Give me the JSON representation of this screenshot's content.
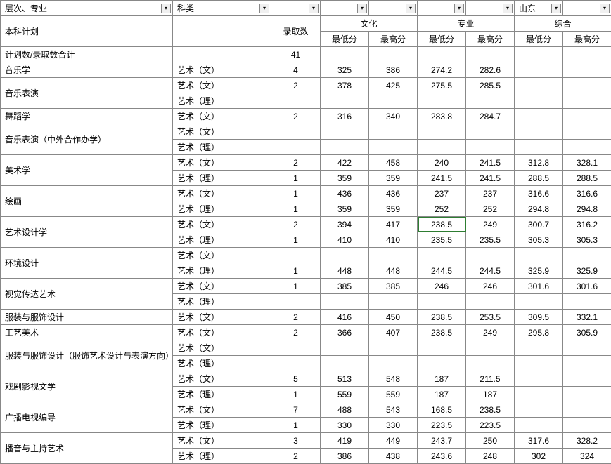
{
  "headers": {
    "levelMajor": "层次、专业",
    "category": "科类",
    "province": "山东",
    "admitCount": "录取数",
    "culture": "文化",
    "major": "专业",
    "composite": "综合",
    "min": "最低分",
    "max": "最高分"
  },
  "planLabel": "本科计划",
  "planTotalLabel": "计划数/录取数合计",
  "planTotal": "41",
  "filterIcon": "▾",
  "majors": [
    {
      "name": "音乐学",
      "rows": [
        {
          "cat": "艺术（文）",
          "cnt": "4",
          "cmin": "325",
          "cmax": "386",
          "mmin": "274.2",
          "mmax": "282.6",
          "zmin": "",
          "zmax": ""
        }
      ]
    },
    {
      "name": "音乐表演",
      "rows": [
        {
          "cat": "艺术（文）",
          "cnt": "2",
          "cmin": "378",
          "cmax": "425",
          "mmin": "275.5",
          "mmax": "285.5",
          "zmin": "",
          "zmax": ""
        },
        {
          "cat": "艺术（理）",
          "cnt": "",
          "cmin": "",
          "cmax": "",
          "mmin": "",
          "mmax": "",
          "zmin": "",
          "zmax": ""
        }
      ]
    },
    {
      "name": "舞蹈学",
      "rows": [
        {
          "cat": "艺术（文）",
          "cnt": "2",
          "cmin": "316",
          "cmax": "340",
          "mmin": "283.8",
          "mmax": "284.7",
          "zmin": "",
          "zmax": ""
        }
      ]
    },
    {
      "name": "音乐表演（中外合作办学）",
      "rows": [
        {
          "cat": "艺术（文）",
          "cnt": "",
          "cmin": "",
          "cmax": "",
          "mmin": "",
          "mmax": "",
          "zmin": "",
          "zmax": ""
        },
        {
          "cat": "艺术（理）",
          "cnt": "",
          "cmin": "",
          "cmax": "",
          "mmin": "",
          "mmax": "",
          "zmin": "",
          "zmax": ""
        }
      ]
    },
    {
      "name": "美术学",
      "rows": [
        {
          "cat": "艺术（文）",
          "cnt": "2",
          "cmin": "422",
          "cmax": "458",
          "mmin": "240",
          "mmax": "241.5",
          "zmin": "312.8",
          "zmax": "328.1"
        },
        {
          "cat": "艺术（理）",
          "cnt": "1",
          "cmin": "359",
          "cmax": "359",
          "mmin": "241.5",
          "mmax": "241.5",
          "zmin": "288.5",
          "zmax": "288.5"
        }
      ]
    },
    {
      "name": "绘画",
      "rows": [
        {
          "cat": "艺术（文）",
          "cnt": "1",
          "cmin": "436",
          "cmax": "436",
          "mmin": "237",
          "mmax": "237",
          "zmin": "316.6",
          "zmax": "316.6"
        },
        {
          "cat": "艺术（理）",
          "cnt": "1",
          "cmin": "359",
          "cmax": "359",
          "mmin": "252",
          "mmax": "252",
          "zmin": "294.8",
          "zmax": "294.8"
        }
      ]
    },
    {
      "name": "艺术设计学",
      "rows": [
        {
          "cat": "艺术（文）",
          "cnt": "2",
          "cmin": "394",
          "cmax": "417",
          "mmin": "238.5",
          "mmax": "249",
          "zmin": "300.7",
          "zmax": "316.2",
          "sel": "mmin"
        },
        {
          "cat": "艺术（理）",
          "cnt": "1",
          "cmin": "410",
          "cmax": "410",
          "mmin": "235.5",
          "mmax": "235.5",
          "zmin": "305.3",
          "zmax": "305.3"
        }
      ]
    },
    {
      "name": "环境设计",
      "rows": [
        {
          "cat": "艺术（文）",
          "cnt": "",
          "cmin": "",
          "cmax": "",
          "mmin": "",
          "mmax": "",
          "zmin": "",
          "zmax": ""
        },
        {
          "cat": "艺术（理）",
          "cnt": "1",
          "cmin": "448",
          "cmax": "448",
          "mmin": "244.5",
          "mmax": "244.5",
          "zmin": "325.9",
          "zmax": "325.9"
        }
      ]
    },
    {
      "name": "视觉传达艺术",
      "rows": [
        {
          "cat": "艺术（文）",
          "cnt": "1",
          "cmin": "385",
          "cmax": "385",
          "mmin": "246",
          "mmax": "246",
          "zmin": "301.6",
          "zmax": "301.6"
        },
        {
          "cat": "艺术（理）",
          "cnt": "",
          "cmin": "",
          "cmax": "",
          "mmin": "",
          "mmax": "",
          "zmin": "",
          "zmax": ""
        }
      ]
    },
    {
      "name": "服装与服饰设计",
      "rows": [
        {
          "cat": "艺术（文）",
          "cnt": "2",
          "cmin": "416",
          "cmax": "450",
          "mmin": "238.5",
          "mmax": "253.5",
          "zmin": "309.5",
          "zmax": "332.1"
        }
      ]
    },
    {
      "name": "工艺美术",
      "rows": [
        {
          "cat": "艺术（文）",
          "cnt": "2",
          "cmin": "366",
          "cmax": "407",
          "mmin": "238.5",
          "mmax": "249",
          "zmin": "295.8",
          "zmax": "305.9"
        }
      ]
    },
    {
      "name": "服装与服饰设计（服饰艺术设计与表演方向）",
      "rows": [
        {
          "cat": "艺术（文）",
          "cnt": "",
          "cmin": "",
          "cmax": "",
          "mmin": "",
          "mmax": "",
          "zmin": "",
          "zmax": ""
        },
        {
          "cat": "艺术（理）",
          "cnt": "",
          "cmin": "",
          "cmax": "",
          "mmin": "",
          "mmax": "",
          "zmin": "",
          "zmax": ""
        }
      ]
    },
    {
      "name": "戏剧影视文学",
      "rows": [
        {
          "cat": "艺术（文）",
          "cnt": "5",
          "cmin": "513",
          "cmax": "548",
          "mmin": "187",
          "mmax": "211.5",
          "zmin": "",
          "zmax": ""
        },
        {
          "cat": "艺术（理）",
          "cnt": "1",
          "cmin": "559",
          "cmax": "559",
          "mmin": "187",
          "mmax": "187",
          "zmin": "",
          "zmax": ""
        }
      ]
    },
    {
      "name": "广播电视编导",
      "rows": [
        {
          "cat": "艺术（文）",
          "cnt": "7",
          "cmin": "488",
          "cmax": "543",
          "mmin": "168.5",
          "mmax": "238.5",
          "zmin": "",
          "zmax": ""
        },
        {
          "cat": "艺术（理）",
          "cnt": "1",
          "cmin": "330",
          "cmax": "330",
          "mmin": "223.5",
          "mmax": "223.5",
          "zmin": "",
          "zmax": ""
        }
      ]
    },
    {
      "name": "播音与主持艺术",
      "rows": [
        {
          "cat": "艺术（文）",
          "cnt": "3",
          "cmin": "419",
          "cmax": "449",
          "mmin": "243.7",
          "mmax": "250",
          "zmin": "317.6",
          "zmax": "328.2"
        },
        {
          "cat": "艺术（理）",
          "cnt": "2",
          "cmin": "386",
          "cmax": "438",
          "mmin": "243.6",
          "mmax": "248",
          "zmin": "302",
          "zmax": "324"
        }
      ]
    }
  ]
}
